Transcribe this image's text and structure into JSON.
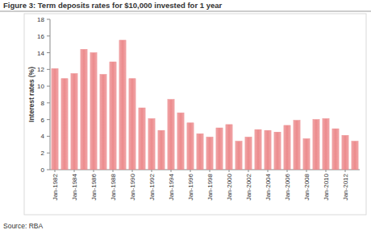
{
  "chart_data": {
    "type": "bar",
    "title": "Figure 3: Term deposits rates for $10,000 invested for 1 year",
    "y_label": "Interest rates (%)",
    "annotations": [
      "Source: RBA"
    ],
    "categories": [
      "Jan-1982",
      null,
      "Jan-1984",
      null,
      "Jan-1986",
      null,
      "Jan-1988",
      null,
      "Jan-1990",
      null,
      "Jan-1992",
      null,
      "Jan-1994",
      null,
      "Jan-1996",
      null,
      "Jan-1998",
      null,
      "Jan-2000",
      null,
      "Jan-2002",
      null,
      "Jan-2004",
      null,
      "Jan-2006",
      null,
      "Jan-2008",
      null,
      "Jan-2010",
      null,
      "Jan-2012",
      null
    ],
    "values": [
      12.1,
      10.9,
      11.5,
      14.4,
      14.0,
      11.4,
      12.9,
      15.5,
      10.9,
      7.4,
      6.1,
      4.7,
      8.4,
      6.8,
      5.6,
      4.3,
      3.9,
      5.0,
      5.4,
      3.4,
      3.9,
      4.8,
      4.7,
      4.5,
      5.3,
      5.9,
      3.7,
      6.0,
      6.1,
      4.9,
      4.1,
      3.4
    ],
    "color": "#ec8a8c",
    "ylim": [
      0,
      18
    ],
    "yticks": [
      0,
      2,
      4,
      6,
      8,
      10,
      12,
      14,
      16,
      18
    ],
    "grid": false
  }
}
